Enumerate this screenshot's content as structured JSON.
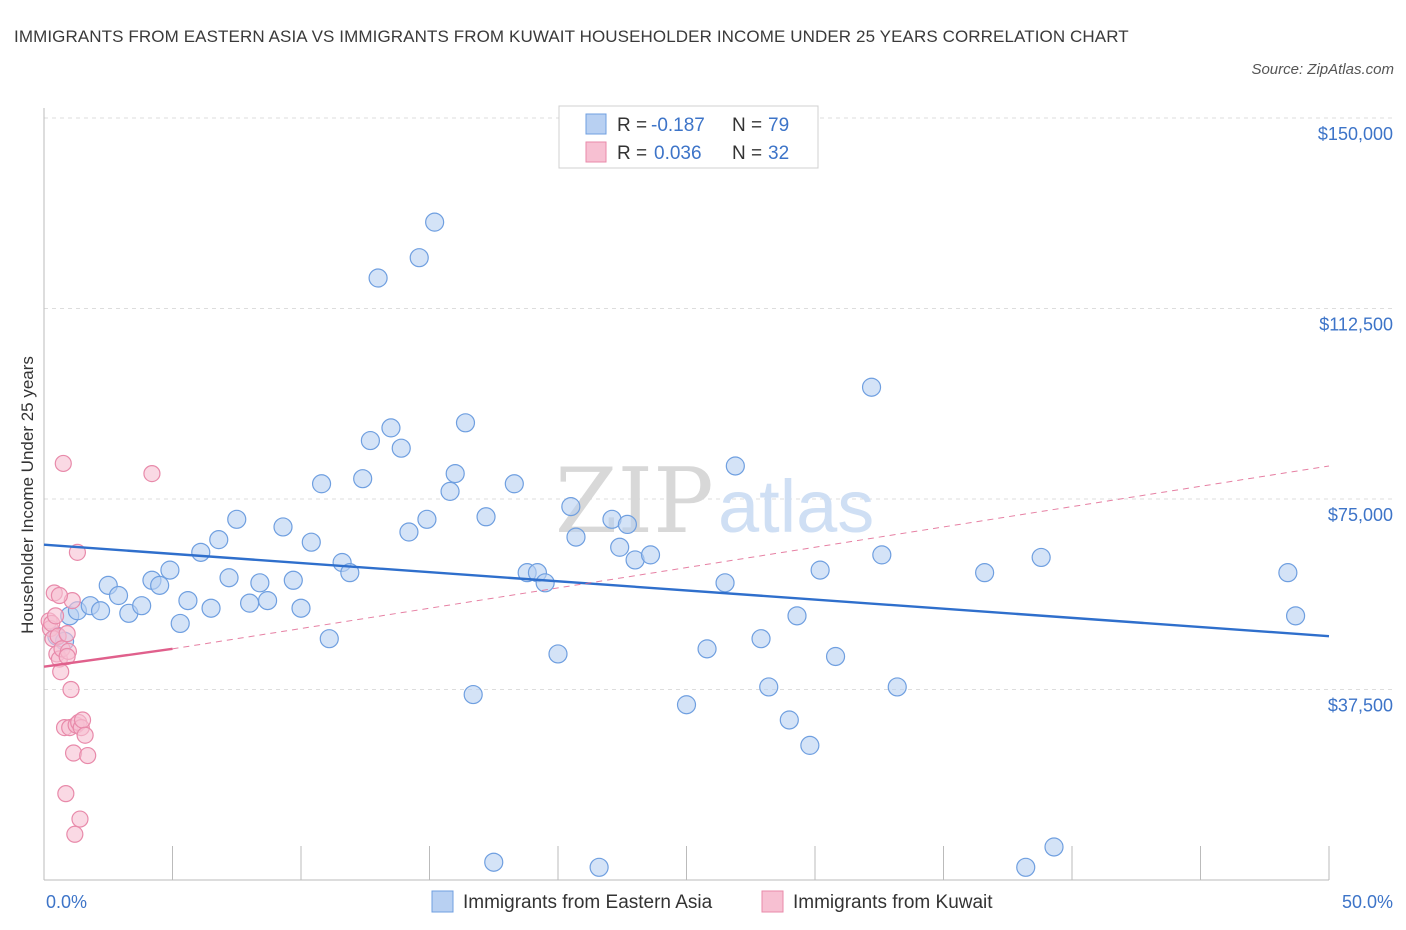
{
  "title": "IMMIGRANTS FROM EASTERN ASIA VS IMMIGRANTS FROM KUWAIT HOUSEHOLDER INCOME UNDER 25 YEARS CORRELATION CHART",
  "source": "Source: ZipAtlas.com",
  "watermark": {
    "zip": "ZIP",
    "atlas": "atlas"
  },
  "colors": {
    "blue_fill": "#b8d0f2",
    "blue_stroke": "#6f9fe0",
    "blue_line": "#2f6fcc",
    "pink_fill": "#f7c0d2",
    "pink_stroke": "#e88aaa",
    "pink_line": "#e0608c",
    "axis_text": "#3d74c8",
    "grid": "#dddddd"
  },
  "legend": {
    "rows": [
      {
        "r_label": "R =",
        "r_value": "-0.187",
        "n_label": "N =",
        "n_value": "79",
        "series": "blue"
      },
      {
        "r_label": "R =",
        "r_value": "0.036",
        "n_label": "N =",
        "n_value": "32",
        "series": "pink"
      }
    ]
  },
  "bottom_legend": [
    "Immigrants from Eastern Asia",
    "Immigrants from Kuwait"
  ],
  "chart_data": {
    "type": "scatter",
    "xlabel": "",
    "ylabel": "Householder Income Under 25 years",
    "xlim": [
      0,
      50
    ],
    "ylim": [
      0,
      150000
    ],
    "x_tick_labels": [
      "0.0%",
      "50.0%"
    ],
    "y_ticks": [
      {
        "value": 37500,
        "label": "$37,500"
      },
      {
        "value": 75000,
        "label": "$75,000"
      },
      {
        "value": 112500,
        "label": "$112,500"
      },
      {
        "value": 150000,
        "label": "$150,000"
      }
    ],
    "grid": "horizontal dashed",
    "legend_position": "top-center",
    "series": [
      {
        "name": "Immigrants from Eastern Asia",
        "color": "blue",
        "trend": {
          "x": [
            0,
            50
          ],
          "y": [
            66000,
            48000
          ],
          "style": "solid"
        },
        "points": [
          {
            "x": 0.5,
            "y": 48000
          },
          {
            "x": 0.8,
            "y": 47000
          },
          {
            "x": 1.0,
            "y": 52000
          },
          {
            "x": 1.3,
            "y": 53000
          },
          {
            "x": 1.8,
            "y": 54000
          },
          {
            "x": 2.2,
            "y": 53000
          },
          {
            "x": 2.5,
            "y": 58000
          },
          {
            "x": 2.9,
            "y": 56000
          },
          {
            "x": 3.3,
            "y": 52500
          },
          {
            "x": 3.8,
            "y": 54000
          },
          {
            "x": 4.2,
            "y": 59000
          },
          {
            "x": 4.5,
            "y": 58000
          },
          {
            "x": 4.9,
            "y": 61000
          },
          {
            "x": 5.3,
            "y": 50500
          },
          {
            "x": 5.6,
            "y": 55000
          },
          {
            "x": 6.1,
            "y": 64500
          },
          {
            "x": 6.5,
            "y": 53500
          },
          {
            "x": 6.8,
            "y": 67000
          },
          {
            "x": 7.2,
            "y": 59500
          },
          {
            "x": 7.5,
            "y": 71000
          },
          {
            "x": 8.0,
            "y": 54500
          },
          {
            "x": 8.4,
            "y": 58500
          },
          {
            "x": 8.7,
            "y": 55000
          },
          {
            "x": 9.3,
            "y": 69500
          },
          {
            "x": 9.7,
            "y": 59000
          },
          {
            "x": 10.0,
            "y": 53500
          },
          {
            "x": 10.4,
            "y": 66500
          },
          {
            "x": 10.8,
            "y": 78000
          },
          {
            "x": 11.1,
            "y": 47500
          },
          {
            "x": 11.6,
            "y": 62500
          },
          {
            "x": 11.9,
            "y": 60500
          },
          {
            "x": 12.4,
            "y": 79000
          },
          {
            "x": 12.7,
            "y": 86500
          },
          {
            "x": 13.0,
            "y": 118500
          },
          {
            "x": 13.5,
            "y": 89000
          },
          {
            "x": 13.9,
            "y": 85000
          },
          {
            "x": 14.2,
            "y": 68500
          },
          {
            "x": 14.6,
            "y": 122500
          },
          {
            "x": 14.9,
            "y": 71000
          },
          {
            "x": 15.2,
            "y": 129500
          },
          {
            "x": 15.8,
            "y": 76500
          },
          {
            "x": 16.0,
            "y": 80000
          },
          {
            "x": 16.4,
            "y": 90000
          },
          {
            "x": 16.7,
            "y": 36500
          },
          {
            "x": 17.2,
            "y": 71500
          },
          {
            "x": 17.5,
            "y": 3500
          },
          {
            "x": 18.3,
            "y": 78000
          },
          {
            "x": 18.8,
            "y": 60500
          },
          {
            "x": 19.2,
            "y": 60500
          },
          {
            "x": 19.5,
            "y": 58500
          },
          {
            "x": 20.0,
            "y": 44500
          },
          {
            "x": 20.5,
            "y": 73500
          },
          {
            "x": 20.7,
            "y": 67500
          },
          {
            "x": 21.6,
            "y": 2500
          },
          {
            "x": 22.1,
            "y": 71000
          },
          {
            "x": 22.4,
            "y": 65500
          },
          {
            "x": 22.7,
            "y": 70000
          },
          {
            "x": 23.0,
            "y": 63000
          },
          {
            "x": 23.6,
            "y": 64000
          },
          {
            "x": 25.0,
            "y": 34500
          },
          {
            "x": 25.8,
            "y": 45500
          },
          {
            "x": 26.5,
            "y": 58500
          },
          {
            "x": 26.9,
            "y": 81500
          },
          {
            "x": 27.9,
            "y": 47500
          },
          {
            "x": 28.2,
            "y": 38000
          },
          {
            "x": 29.0,
            "y": 31500
          },
          {
            "x": 29.3,
            "y": 52000
          },
          {
            "x": 29.8,
            "y": 26500
          },
          {
            "x": 30.2,
            "y": 61000
          },
          {
            "x": 30.8,
            "y": 44000
          },
          {
            "x": 32.2,
            "y": 97000
          },
          {
            "x": 32.6,
            "y": 64000
          },
          {
            "x": 33.2,
            "y": 38000
          },
          {
            "x": 36.6,
            "y": 60500
          },
          {
            "x": 38.2,
            "y": 2500
          },
          {
            "x": 38.8,
            "y": 63500
          },
          {
            "x": 39.3,
            "y": 6500
          },
          {
            "x": 48.4,
            "y": 60500
          },
          {
            "x": 48.7,
            "y": 52000
          }
        ]
      },
      {
        "name": "Immigrants from Kuwait",
        "color": "pink",
        "trend": {
          "x": [
            0,
            5
          ],
          "y": [
            42000,
            45500
          ],
          "style": "solid",
          "extension": {
            "x": [
              5,
              50
            ],
            "y": [
              45500,
              81500
            ],
            "style": "dashed"
          }
        },
        "points": [
          {
            "x": 0.2,
            "y": 51000
          },
          {
            "x": 0.25,
            "y": 49500
          },
          {
            "x": 0.3,
            "y": 50500
          },
          {
            "x": 0.35,
            "y": 47500
          },
          {
            "x": 0.4,
            "y": 56500
          },
          {
            "x": 0.45,
            "y": 52000
          },
          {
            "x": 0.5,
            "y": 44500
          },
          {
            "x": 0.55,
            "y": 48000
          },
          {
            "x": 0.6,
            "y": 43500
          },
          {
            "x": 0.65,
            "y": 41000
          },
          {
            "x": 0.7,
            "y": 45500
          },
          {
            "x": 0.75,
            "y": 82000
          },
          {
            "x": 0.8,
            "y": 30000
          },
          {
            "x": 0.85,
            "y": 17000
          },
          {
            "x": 0.9,
            "y": 48500
          },
          {
            "x": 0.95,
            "y": 45000
          },
          {
            "x": 1.0,
            "y": 30000
          },
          {
            "x": 1.05,
            "y": 37500
          },
          {
            "x": 1.1,
            "y": 55000
          },
          {
            "x": 1.15,
            "y": 25000
          },
          {
            "x": 1.2,
            "y": 9000
          },
          {
            "x": 1.25,
            "y": 30500
          },
          {
            "x": 1.3,
            "y": 64500
          },
          {
            "x": 1.35,
            "y": 31000
          },
          {
            "x": 1.4,
            "y": 12000
          },
          {
            "x": 1.45,
            "y": 30000
          },
          {
            "x": 1.5,
            "y": 31500
          },
          {
            "x": 1.6,
            "y": 28500
          },
          {
            "x": 1.7,
            "y": 24500
          },
          {
            "x": 0.6,
            "y": 56000
          },
          {
            "x": 4.2,
            "y": 80000
          },
          {
            "x": 0.9,
            "y": 44000
          }
        ]
      }
    ]
  }
}
